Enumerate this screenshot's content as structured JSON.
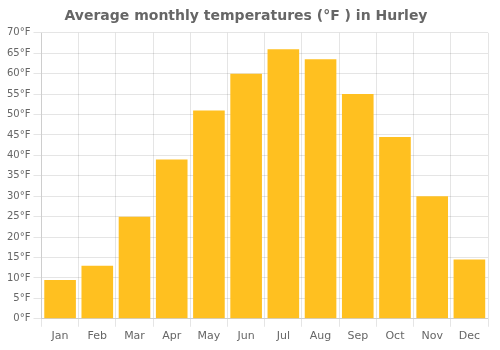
{
  "chart_data": {
    "type": "bar",
    "title": "Average monthly temperatures (°F ) in Hurley",
    "categories": [
      "Jan",
      "Feb",
      "Mar",
      "Apr",
      "May",
      "Jun",
      "Jul",
      "Aug",
      "Sep",
      "Oct",
      "Nov",
      "Dec"
    ],
    "values": [
      9.5,
      13,
      25,
      39,
      51,
      60,
      66,
      63.5,
      55,
      44.5,
      30,
      14.5
    ],
    "color": "#FFC020",
    "ylim": [
      0,
      70
    ],
    "yticks": [
      {
        "value": 0,
        "label": "0°F"
      },
      {
        "value": 5,
        "label": "5°F"
      },
      {
        "value": 10,
        "label": "10°F"
      },
      {
        "value": 15,
        "label": "15°F"
      },
      {
        "value": 20,
        "label": "20°F"
      },
      {
        "value": 25,
        "label": "25°F"
      },
      {
        "value": 30,
        "label": "30°F"
      },
      {
        "value": 35,
        "label": "35°F"
      },
      {
        "value": 40,
        "label": "40°F"
      },
      {
        "value": 45,
        "label": "45°F"
      },
      {
        "value": 50,
        "label": "50°F"
      },
      {
        "value": 55,
        "label": "55°F"
      },
      {
        "value": 60,
        "label": "60°F"
      },
      {
        "value": 65,
        "label": "65°F"
      },
      {
        "value": 70,
        "label": "70°F"
      }
    ],
    "grid": true
  }
}
